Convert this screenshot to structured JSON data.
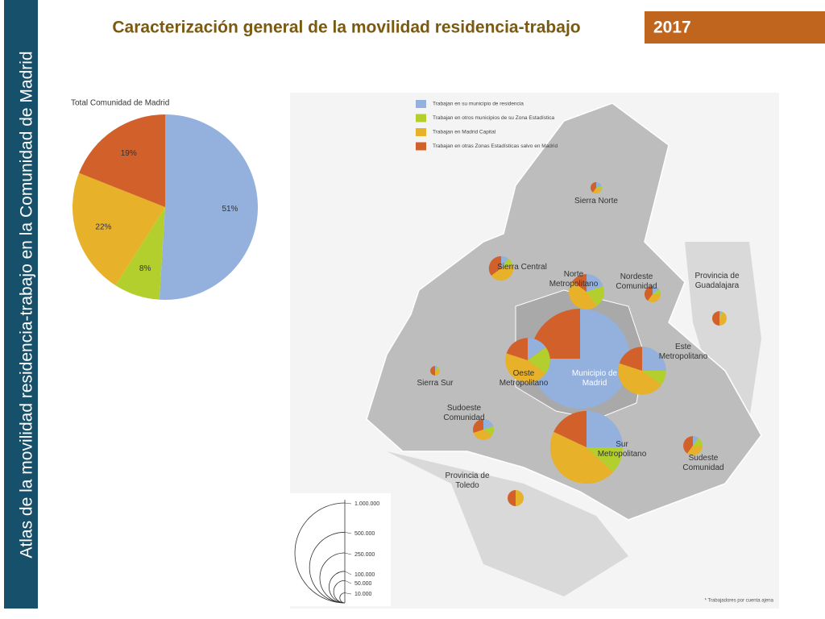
{
  "header": {
    "side_title": "Atlas de la movilidad residencia-trabajo en la Comunidad de Madrid",
    "title": "Caracterización general de la movilidad residencia-trabajo",
    "year": "2017"
  },
  "chart_data": {
    "type": "pie",
    "title": "Total Comunidad de Madrid",
    "categories": [
      "Trabajan en su municipio de residencia",
      "Trabajan en otros municipios de su Zona Estadística",
      "Trabajan en Madrid Capital",
      "Trabajan en otras Zonas Estadísticas salvo en Madrid"
    ],
    "values": [
      51,
      8,
      22,
      19
    ],
    "value_labels": [
      "51%",
      "8%",
      "22%",
      "19%"
    ],
    "colors": [
      "#94b0dc",
      "#b3cf2e",
      "#e8b12a",
      "#d2602a"
    ]
  },
  "map": {
    "size_ticks": [
      {
        "value": 1000000,
        "label": "1.000.000"
      },
      {
        "value": 500000,
        "label": "500.000"
      },
      {
        "value": 250000,
        "label": "250.000"
      },
      {
        "value": 100000,
        "label": "100.000"
      },
      {
        "value": 50000,
        "label": "50.000"
      },
      {
        "value": 10000,
        "label": "10.000"
      }
    ],
    "footnote": "* Trabajadores por cuenta ajena",
    "regions": [
      {
        "name": "Municipio de Madrid",
        "workers": 1000000,
        "values": [
          75,
          0,
          0,
          25
        ]
      },
      {
        "name": "Sur Metropolitano",
        "workers": 530000,
        "values": [
          25,
          12,
          45,
          18
        ]
      },
      {
        "name": "Oeste Metropolitano",
        "workers": 200000,
        "values": [
          15,
          20,
          45,
          20
        ]
      },
      {
        "name": "Este Metropolitano",
        "workers": 230000,
        "values": [
          25,
          10,
          45,
          20
        ]
      },
      {
        "name": "Norte Metropolitano",
        "workers": 125000,
        "values": [
          20,
          20,
          45,
          15
        ]
      },
      {
        "name": "Sierra Central",
        "workers": 60000,
        "values": [
          10,
          10,
          45,
          35
        ]
      },
      {
        "name": "Sierra Norte",
        "workers": 13000,
        "values": [
          20,
          10,
          30,
          40
        ]
      },
      {
        "name": "Nordeste Comunidad",
        "workers": 26000,
        "values": [
          15,
          10,
          35,
          40
        ]
      },
      {
        "name": "Sudeste Comunidad",
        "workers": 37000,
        "values": [
          10,
          15,
          35,
          40
        ]
      },
      {
        "name": "Sudoeste Comunidad",
        "workers": 44000,
        "values": [
          20,
          15,
          35,
          30
        ]
      },
      {
        "name": "Sierra Sur",
        "workers": 9000,
        "values": [
          10,
          10,
          30,
          50
        ]
      },
      {
        "name": "Provincia de Guadalajara",
        "workers": 21000,
        "values": [
          5,
          5,
          40,
          50
        ]
      },
      {
        "name": "Provincia de Toledo",
        "workers": 26000,
        "values": [
          0,
          0,
          50,
          50
        ]
      }
    ]
  }
}
